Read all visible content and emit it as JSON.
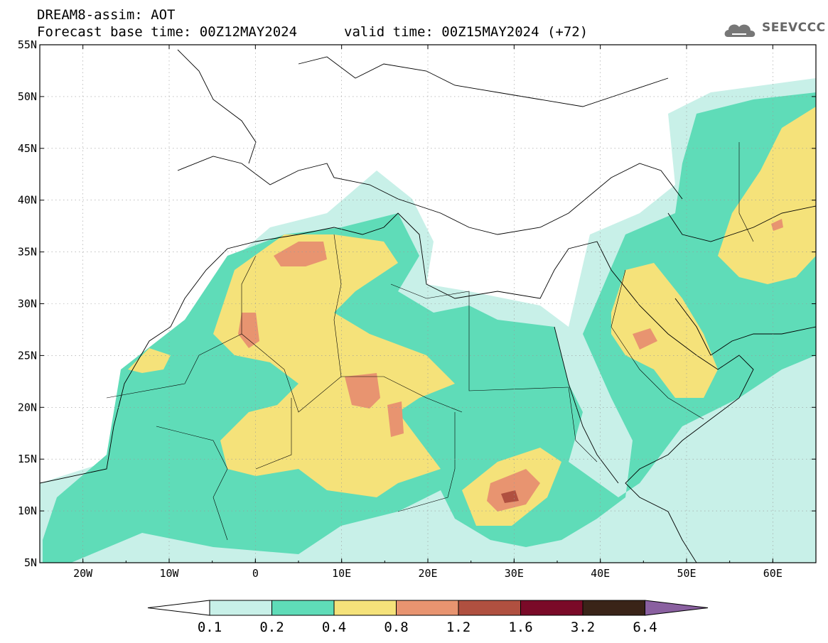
{
  "title_line1": "DREAM8-assim: AOT",
  "title_line2": "Forecast base time: 00Z12MAY2024",
  "valid_text": "valid time: 00Z15MAY2024 (+72)",
  "logo_text": "SEEVCCC",
  "logo_icon": "cloud-icon",
  "map_extent": {
    "lon_min": -25,
    "lon_max": 65,
    "lat_min": 5,
    "lat_max": 55
  },
  "lat_labels": [
    "5N",
    "10N",
    "15N",
    "20N",
    "25N",
    "30N",
    "35N",
    "40N",
    "45N",
    "50N",
    "55N"
  ],
  "lon_labels": [
    "20W",
    "10W",
    "0",
    "10E",
    "20E",
    "30E",
    "40E",
    "50E",
    "60E"
  ],
  "colorbar": {
    "labels": [
      "0.1",
      "0.2",
      "0.4",
      "0.8",
      "1.2",
      "1.6",
      "3.2",
      "6.4"
    ],
    "colors": [
      "#ffffff",
      "#c8f0e8",
      "#5fdcb8",
      "#f5e27a",
      "#e89470",
      "#b05040",
      "#7a0a28",
      "#3a2418",
      "#8a60a0"
    ]
  }
}
